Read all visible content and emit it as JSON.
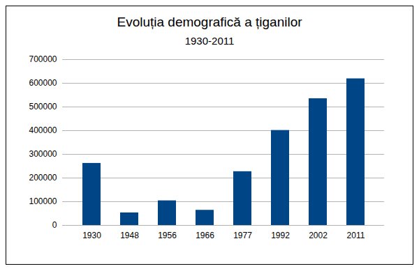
{
  "chart_data": {
    "type": "bar",
    "title": "Evoluția demografică a țiganilor",
    "subtitle": "1930-2011",
    "categories": [
      "1930",
      "1948",
      "1956",
      "1966",
      "1977",
      "1992",
      "2002",
      "2011"
    ],
    "values": [
      262000,
      53000,
      104000,
      64000,
      227000,
      401000,
      535000,
      619000
    ],
    "color": "#004586",
    "ylim": [
      0,
      700000
    ],
    "yticks": [
      0,
      100000,
      200000,
      300000,
      400000,
      500000,
      600000,
      700000
    ],
    "grid": true
  }
}
